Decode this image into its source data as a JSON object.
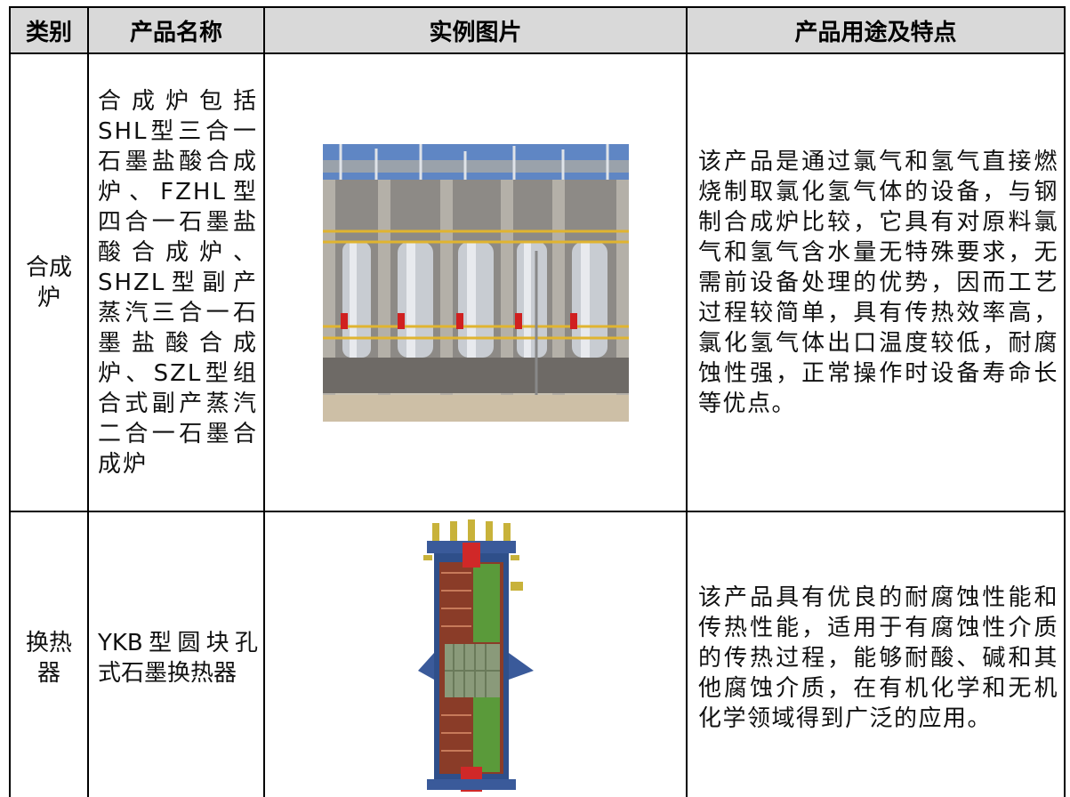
{
  "table": {
    "header": [
      "类别",
      "产品名称",
      "实例图片",
      "产品用途及特点"
    ],
    "rows": [
      {
        "category": "合成炉",
        "name": "合成炉包括SHL型三合一石墨盐酸合成炉、FZHL型四合一石墨盐酸合成炉、SHZL型副产蒸汽三合一石墨盐酸合成炉、SZL型组合式副产蒸汽二合一石墨合成炉",
        "description": "该产品是通过氯气和氢气直接燃烧制取氯化氢气体的设备，与钢制合成炉比较，它具有对原料氯气和氢气含水量无特殊要求，无需前设备处理的优势，因而工艺过程较简单，具有传热效率高，氯化氢气体出口温度较低，耐腐蚀性强，正常操作时设备寿命长等优点。"
      },
      {
        "category": "换热器",
        "name": "YKB型圆块孔式石墨换热器",
        "description": "该产品具有优良的耐腐蚀性能和传热性能，适用于有腐蚀性介质的传热过程，能够耐酸、碱和其他腐蚀介质，在有机化学和无机化学领域得到广泛的应用。"
      }
    ]
  }
}
